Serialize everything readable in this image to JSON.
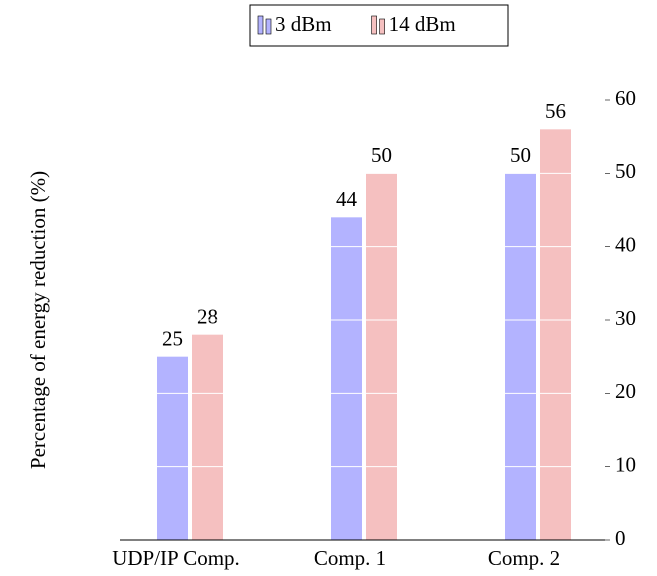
{
  "chart_data": {
    "type": "bar",
    "y_label": "Percentage of energy reduction (%)",
    "categories": [
      "UDP/IP Comp.",
      "Comp. 1",
      "Comp. 2"
    ],
    "series": [
      {
        "name": "3 dBm",
        "color": "#b3b3ff",
        "values": [
          25,
          44,
          50
        ]
      },
      {
        "name": "14 dBm",
        "color": "#f5c0c0",
        "values": [
          28,
          50,
          56
        ]
      }
    ],
    "ylim": [
      0,
      60
    ],
    "yticks": [
      0,
      10,
      20,
      30,
      40,
      50,
      60
    ],
    "grid": true,
    "y_axis_side": "right",
    "legend": "top"
  }
}
